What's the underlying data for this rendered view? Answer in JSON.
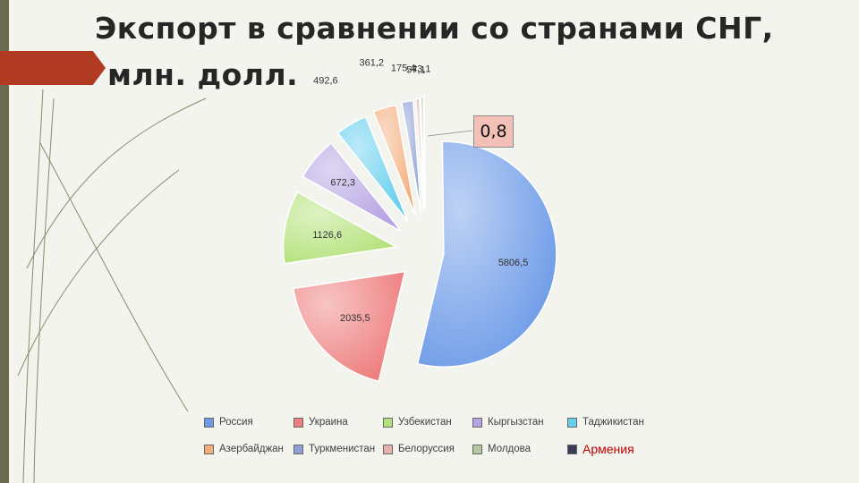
{
  "slide": {
    "title_line1": "Экспорт в сравнении со странами СНГ,",
    "title_line2": "млн. долл.",
    "callout": "0,8"
  },
  "colors": {
    "background": "#f3f4ee",
    "ribbon": "#b03a22",
    "decor_lines": "#8a8a6a"
  },
  "chart_data": {
    "type": "pie",
    "title": "",
    "legend_position": "bottom",
    "slices": [
      {
        "name": "Россия",
        "value": 5806.5,
        "label": "5806,5",
        "color": "#6d9be8"
      },
      {
        "name": "Украина",
        "value": 2035.5,
        "label": "2035,5",
        "color": "#ee7d7d"
      },
      {
        "name": "Узбекистан",
        "value": 1126.6,
        "label": "1126,6",
        "color": "#b4e27a"
      },
      {
        "name": "Кыргызстан",
        "value": 672.3,
        "label": "672,3",
        "color": "#b6a3e3"
      },
      {
        "name": "Таджикистан",
        "value": 492.6,
        "label": "492,6",
        "color": "#66d0ef"
      },
      {
        "name": "Азербайджан",
        "value": 361.2,
        "label": "361,2",
        "color": "#f4ae7d"
      },
      {
        "name": "Туркменистан",
        "value": 175.4,
        "label": "175,4",
        "color": "#8ea1d6"
      },
      {
        "name": "Белоруссия",
        "value": 57.1,
        "label": "57,1",
        "color": "#e6b0ad"
      },
      {
        "name": "Молдова",
        "value": 43.1,
        "label": "43,1",
        "color": "#b7c6a3"
      },
      {
        "name": "Армения",
        "value": 0.8,
        "label": "",
        "color": "#3b3b5a"
      }
    ]
  }
}
